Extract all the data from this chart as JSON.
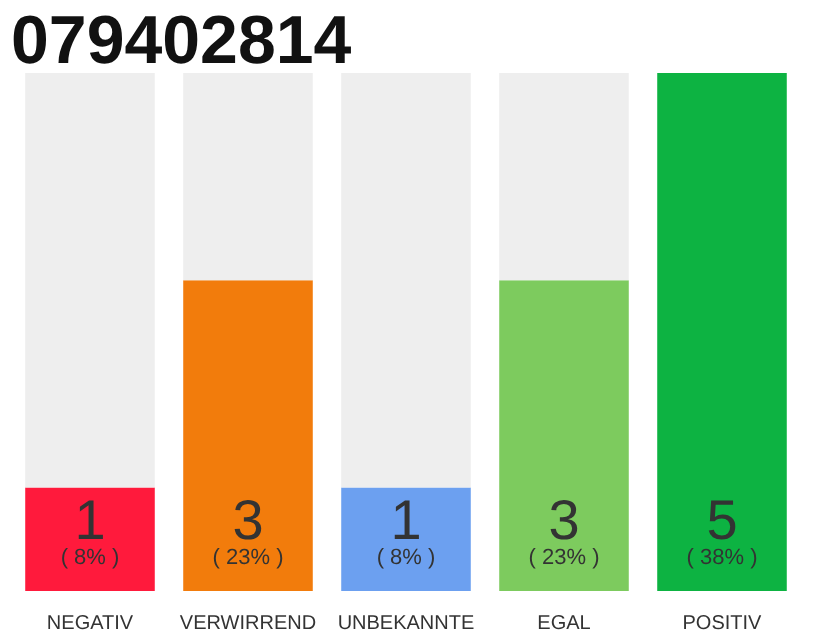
{
  "chart_data": {
    "type": "bar",
    "title": "079402814",
    "categories": [
      "NEGATIV",
      "VERWIRREND",
      "UNBEKANNTE",
      "EGAL",
      "POSITIV"
    ],
    "stacked": true,
    "ylim": [
      0,
      5
    ],
    "tick_labels": "x",
    "grid": false,
    "series": [
      {
        "colors": [
          "#ff1a3c",
          "#f27c0c",
          "#6ca0f0",
          "#7dcb5e",
          "#0db342"
        ],
        "values": [
          1,
          3,
          1,
          3,
          5
        ],
        "value_labels": [
          "1",
          "3",
          "1",
          "3",
          "5"
        ]
      },
      {
        "color": "#eeeeee",
        "values": [
          4,
          2,
          4,
          2,
          0
        ]
      }
    ],
    "annotations": [
      "( 8% )",
      "( 23% )",
      "( 8% )",
      "( 23% )",
      "( 38% )"
    ]
  }
}
